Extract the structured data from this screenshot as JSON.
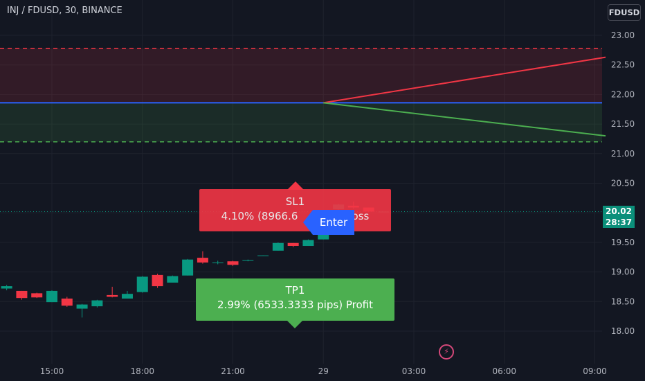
{
  "header": {
    "title": "INJ / FDUSD, 30, BINANCE",
    "currency": "FDUSD"
  },
  "colors": {
    "background": "#131722",
    "up": "#089981",
    "down": "#f23645",
    "stop_zone": "#f23645",
    "target_zone": "#4caf50",
    "entry_line": "#2962ff"
  },
  "chart_data": {
    "type": "candlestick",
    "symbol": "INJ / FDUSD",
    "interval": "30",
    "exchange": "BINANCE",
    "y_ticks": [
      "23.00",
      "22.50",
      "22.00",
      "21.50",
      "21.00",
      "20.50",
      "20.00",
      "19.50",
      "19.00",
      "18.50",
      "18.00"
    ],
    "x_ticks": [
      {
        "label": "15:00",
        "t": 15
      },
      {
        "label": "18:00",
        "t": 18
      },
      {
        "label": "21:00",
        "t": 21
      },
      {
        "label": "29",
        "t": 24
      },
      {
        "label": "03:00",
        "t": 27
      },
      {
        "label": "06:00",
        "t": 30
      },
      {
        "label": "09:00",
        "t": 33
      }
    ],
    "candles": [
      {
        "t": 12.5,
        "o": 18.82,
        "h": 18.97,
        "l": 18.75,
        "c": 18.93
      },
      {
        "t": 13.0,
        "o": 18.81,
        "h": 18.87,
        "l": 18.72,
        "c": 18.74
      },
      {
        "t": 13.5,
        "o": 18.72,
        "h": 18.78,
        "l": 18.69,
        "c": 18.76
      },
      {
        "t": 14.0,
        "o": 18.68,
        "h": 18.68,
        "l": 18.53,
        "c": 18.56
      },
      {
        "t": 14.5,
        "o": 18.64,
        "h": 18.65,
        "l": 18.56,
        "c": 18.57
      },
      {
        "t": 15.0,
        "o": 18.49,
        "h": 18.69,
        "l": 18.49,
        "c": 18.68
      },
      {
        "t": 15.5,
        "o": 18.55,
        "h": 18.58,
        "l": 18.41,
        "c": 18.43
      },
      {
        "t": 16.0,
        "o": 18.38,
        "h": 18.46,
        "l": 18.23,
        "c": 18.45
      },
      {
        "t": 16.5,
        "o": 18.42,
        "h": 18.53,
        "l": 18.4,
        "c": 18.52
      },
      {
        "t": 17.0,
        "o": 18.61,
        "h": 18.75,
        "l": 18.57,
        "c": 18.58
      },
      {
        "t": 17.5,
        "o": 18.55,
        "h": 18.68,
        "l": 18.55,
        "c": 18.63
      },
      {
        "t": 18.0,
        "o": 18.66,
        "h": 18.93,
        "l": 18.65,
        "c": 18.92
      },
      {
        "t": 18.5,
        "o": 18.95,
        "h": 18.97,
        "l": 18.73,
        "c": 18.76
      },
      {
        "t": 19.0,
        "o": 18.82,
        "h": 18.94,
        "l": 18.82,
        "c": 18.93
      },
      {
        "t": 19.5,
        "o": 18.94,
        "h": 19.22,
        "l": 18.94,
        "c": 19.21
      },
      {
        "t": 20.0,
        "o": 19.24,
        "h": 19.35,
        "l": 19.14,
        "c": 19.16
      },
      {
        "t": 20.5,
        "o": 19.15,
        "h": 19.19,
        "l": 19.13,
        "c": 19.16
      },
      {
        "t": 21.0,
        "o": 19.18,
        "h": 19.19,
        "l": 19.1,
        "c": 19.12
      },
      {
        "t": 21.5,
        "o": 19.19,
        "h": 19.21,
        "l": 19.18,
        "c": 19.2
      },
      {
        "t": 22.0,
        "o": 19.27,
        "h": 19.28,
        "l": 19.27,
        "c": 19.28
      },
      {
        "t": 22.5,
        "o": 19.36,
        "h": 19.5,
        "l": 19.36,
        "c": 19.49
      },
      {
        "t": 23.0,
        "o": 19.49,
        "h": 19.49,
        "l": 19.42,
        "c": 19.44
      },
      {
        "t": 23.5,
        "o": 19.44,
        "h": 19.55,
        "l": 19.44,
        "c": 19.54
      },
      {
        "t": 24.0,
        "o": 19.55,
        "h": 20.0,
        "l": 19.55,
        "c": 20.0
      },
      {
        "t": 24.5,
        "o": 20.06,
        "h": 20.15,
        "l": 20.02,
        "c": 20.14
      },
      {
        "t": 25.0,
        "o": 20.12,
        "h": 20.19,
        "l": 20.07,
        "c": 20.09
      },
      {
        "t": 25.5,
        "o": 20.09,
        "h": 20.09,
        "l": 20.01,
        "c": 20.02
      },
      {
        "t": 26.0,
        "o": 20.02,
        "h": 20.02,
        "l": 20.02,
        "c": 20.02
      }
    ],
    "position": {
      "entry": 21.86,
      "stop": 22.78,
      "target": 21.2,
      "start_t": 24.0,
      "end_t": 34.0,
      "stop_line_end": 22.63,
      "target_line_end": 21.3
    },
    "last_price": "20.02",
    "countdown": "28:37",
    "labels": {
      "sl_title": "SL1",
      "sl_detail": "4.10%% (8966.6",
      "sl_detail_end": "Loss",
      "tp_title": "TP1",
      "tp_detail": "2.99%% (6533.3333 pips) Profit",
      "enter": "Enter"
    },
    "ylim": [
      17.72,
      23.2
    ]
  }
}
